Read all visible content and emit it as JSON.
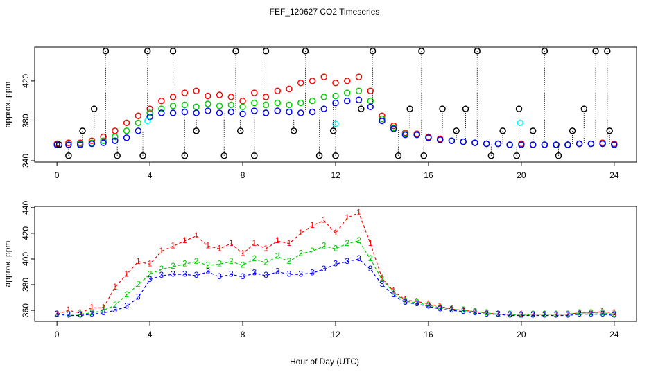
{
  "chart_data": [
    {
      "type": "scatter",
      "title": "FEF_120627  CO2 Timeseries",
      "ylabel": "approx. ppm",
      "xlim": [
        -0.96,
        24.96
      ],
      "ylim": [
        338.6,
        454
      ],
      "xticks": [
        0,
        4,
        8,
        12,
        16,
        20,
        24
      ],
      "yticks": [
        340,
        380,
        420
      ],
      "x": [
        0,
        0.5,
        1,
        1.5,
        2,
        2.5,
        3,
        3.5,
        4,
        4.5,
        5,
        5.5,
        6,
        6.5,
        7,
        7.5,
        8,
        8.5,
        9,
        9.5,
        10,
        10.5,
        11,
        11.5,
        12,
        12.5,
        13,
        13.5,
        14,
        14.5,
        15,
        15.5,
        16,
        16.5,
        17,
        17.5,
        18,
        18.5,
        19,
        19.5,
        20,
        20.5,
        21,
        21.5,
        22,
        22.5,
        23,
        23.5,
        24
      ],
      "series": [
        {
          "color": "#ff0000",
          "values": [
            357,
            358,
            358,
            360,
            364,
            370,
            378,
            385,
            392,
            400,
            404,
            408,
            410,
            405,
            406,
            404,
            400,
            408,
            404,
            410,
            412,
            418,
            420,
            424,
            418,
            420,
            424,
            410,
            385,
            375,
            368,
            367,
            364,
            362,
            360,
            359,
            358,
            357,
            357,
            356,
            357,
            356,
            356,
            356,
            356,
            357,
            357,
            358,
            357
          ]
        },
        {
          "color": "#00cd00",
          "values": [
            356,
            356,
            357,
            358,
            360,
            364,
            370,
            378,
            388,
            392,
            395,
            396,
            394,
            397,
            395,
            396,
            394,
            398,
            396,
            398,
            396,
            398,
            400,
            404,
            405,
            408,
            410,
            400,
            382,
            373,
            367,
            366,
            363,
            361,
            360,
            359,
            358,
            357,
            357,
            356,
            356,
            356,
            356,
            356,
            356,
            357,
            357,
            357,
            356
          ]
        },
        {
          "color": "#0000ff",
          "values": [
            356,
            356,
            356,
            357,
            358,
            360,
            363,
            370,
            384,
            388,
            388,
            389,
            388,
            390,
            388,
            389,
            387,
            390,
            388,
            390,
            389,
            388,
            389,
            392,
            398,
            400,
            401,
            394,
            380,
            372,
            366,
            366,
            363,
            361,
            360,
            359,
            358,
            357,
            357,
            356,
            356,
            356,
            356,
            356,
            356,
            357,
            357,
            357,
            356
          ]
        },
        {
          "color": "#00ffff",
          "x": [
            3.9,
            12.0,
            19.95
          ],
          "values": [
            380,
            377,
            378
          ]
        },
        {
          "color": "#000000",
          "x": [
            0.1,
            0.5,
            1.1,
            1.6,
            2.1,
            2.6,
            3.7,
            3.9,
            5.0,
            5.5,
            6.0,
            7.2,
            7.7,
            7.9,
            8.5,
            9.0,
            10.2,
            10.7,
            11.3,
            11.9,
            12.0,
            13.1,
            13.6,
            14.7,
            15.2,
            15.7,
            15.8,
            16.6,
            17.2,
            17.6,
            18.1,
            18.7,
            19.2,
            19.8,
            19.9,
            20.5,
            21.0,
            21.6,
            22.2,
            22.7,
            23.2,
            23.7,
            23.8
          ],
          "values": [
            356,
            345,
            370,
            392,
            450,
            345,
            345,
            450,
            450,
            345,
            370,
            345,
            450,
            370,
            345,
            450,
            370,
            450,
            345,
            370,
            345,
            392,
            450,
            345,
            392,
            450,
            345,
            392,
            370,
            392,
            450,
            345,
            370,
            345,
            392,
            370,
            450,
            345,
            370,
            392,
            450,
            450,
            370
          ]
        }
      ]
    },
    {
      "type": "line",
      "ylabel": "approx. ppm",
      "xlabel": "Hour of Day (UTC)",
      "xlim": [
        -0.96,
        24.96
      ],
      "ylim": [
        351.4,
        441
      ],
      "xticks": [
        0,
        4,
        8,
        12,
        16,
        20,
        24
      ],
      "yticks": [
        360,
        380,
        400,
        420,
        440
      ],
      "x": [
        0,
        0.5,
        1,
        1.5,
        2,
        2.5,
        3,
        3.5,
        4,
        4.5,
        5,
        5.5,
        6,
        6.5,
        7,
        7.5,
        8,
        8.5,
        9,
        9.5,
        10,
        10.5,
        11,
        11.5,
        12,
        12.5,
        13,
        13.5,
        14,
        14.5,
        15,
        15.5,
        16,
        16.5,
        17,
        17.5,
        18,
        18.5,
        19,
        19.5,
        20,
        20.5,
        21,
        21.5,
        22,
        22.5,
        23,
        23.5,
        24
      ],
      "series": [
        {
          "marker": "1",
          "color": "#ff0000",
          "values": [
            357,
            360,
            358,
            362,
            362,
            378,
            388,
            398,
            396,
            406,
            410,
            414,
            418,
            410,
            408,
            412,
            404,
            412,
            408,
            414,
            412,
            420,
            426,
            430,
            420,
            432,
            436,
            412,
            385,
            375,
            368,
            367,
            365,
            363,
            361,
            360,
            359,
            358,
            357,
            357,
            357,
            357,
            357,
            357,
            357,
            358,
            358,
            359,
            358
          ]
        },
        {
          "marker": "2",
          "color": "#00cd00",
          "values": [
            357,
            357,
            357,
            358,
            360,
            364,
            372,
            380,
            388,
            392,
            394,
            396,
            398,
            395,
            396,
            398,
            395,
            400,
            397,
            402,
            398,
            404,
            406,
            410,
            408,
            412,
            414,
            400,
            384,
            374,
            367,
            366,
            364,
            362,
            361,
            360,
            359,
            358,
            357,
            357,
            356,
            357,
            357,
            357,
            357,
            358,
            358,
            358,
            357
          ]
        },
        {
          "marker": "3",
          "color": "#0000ff",
          "values": [
            357,
            356,
            356,
            357,
            358,
            360,
            363,
            370,
            384,
            387,
            388,
            388,
            387,
            390,
            386,
            388,
            386,
            389,
            387,
            390,
            388,
            388,
            389,
            392,
            396,
            398,
            400,
            392,
            380,
            372,
            366,
            365,
            363,
            361,
            360,
            359,
            358,
            357,
            357,
            356,
            356,
            356,
            356,
            356,
            356,
            357,
            357,
            357,
            356
          ]
        }
      ]
    }
  ]
}
